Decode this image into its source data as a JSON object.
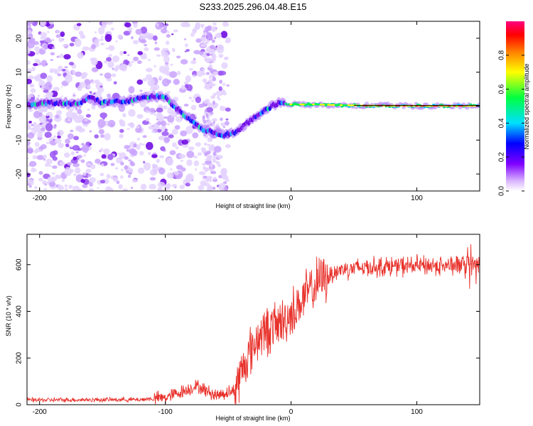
{
  "title": "S233.2025.296.04.48.E15",
  "chart_data": [
    {
      "type": "heatmap",
      "name": "spectrogram",
      "xlabel": "Height of straight line (km)",
      "ylabel": "Frequency (Hz)",
      "xlim": [
        -210,
        150
      ],
      "ylim": [
        -25,
        25
      ],
      "xticks": [
        -200,
        -100,
        0,
        100
      ],
      "xtick_labels": [
        "-200",
        "-100",
        "0",
        "100"
      ],
      "yticks": [
        -20,
        -10,
        0,
        10,
        20
      ],
      "ytick_labels": [
        "-20",
        "-10",
        "0",
        "10",
        "20"
      ],
      "ridge": [
        {
          "x": -210,
          "y": 0.5
        },
        {
          "x": -190,
          "y": 1.0
        },
        {
          "x": -170,
          "y": 0.8
        },
        {
          "x": -160,
          "y": 2.5
        },
        {
          "x": -150,
          "y": 1.0
        },
        {
          "x": -130,
          "y": 1.5
        },
        {
          "x": -110,
          "y": 3.0
        },
        {
          "x": -100,
          "y": 2.5
        },
        {
          "x": -90,
          "y": -1.0
        },
        {
          "x": -80,
          "y": -4.0
        },
        {
          "x": -70,
          "y": -7.0
        },
        {
          "x": -60,
          "y": -8.0
        },
        {
          "x": -55,
          "y": -8.5
        },
        {
          "x": -45,
          "y": -8.0
        },
        {
          "x": -38,
          "y": -6.0
        },
        {
          "x": -30,
          "y": -3.5
        },
        {
          "x": -20,
          "y": -1.0
        },
        {
          "x": -10,
          "y": 1.0
        },
        {
          "x": 0,
          "y": 0.5
        },
        {
          "x": 20,
          "y": 0.5
        },
        {
          "x": 50,
          "y": 0.2
        },
        {
          "x": 100,
          "y": 0.1
        },
        {
          "x": 150,
          "y": 0.1
        }
      ],
      "colorbar": {
        "label": "Normalized spectral amplitude",
        "range": [
          0,
          1
        ],
        "ticks": [
          0.0,
          0.2,
          0.4,
          0.6,
          0.8
        ],
        "tick_labels": [
          "0.0",
          "0.2",
          "0.4",
          "0.6",
          "0.8"
        ],
        "colormap": "rainbow (white-violet-blue-cyan-green-yellow-orange-red-magenta)"
      }
    },
    {
      "type": "line",
      "name": "snr",
      "xlabel": "Height of straight line (km)",
      "ylabel": "SNR (10 * v/v)",
      "xlim": [
        -210,
        150
      ],
      "ylim": [
        0,
        730
      ],
      "xticks": [
        -200,
        -100,
        0,
        100
      ],
      "xtick_labels": [
        "-200",
        "-100",
        "0",
        "100"
      ],
      "yticks": [
        0,
        200,
        400,
        600
      ],
      "ytick_labels": [
        "0",
        "200",
        "400",
        "600"
      ],
      "color": "#e8302a",
      "trend": [
        {
          "x": -210,
          "y": 20
        },
        {
          "x": -120,
          "y": 22
        },
        {
          "x": -100,
          "y": 30
        },
        {
          "x": -85,
          "y": 60
        },
        {
          "x": -75,
          "y": 80
        },
        {
          "x": -60,
          "y": 40
        },
        {
          "x": -45,
          "y": 60
        },
        {
          "x": -35,
          "y": 200
        },
        {
          "x": -25,
          "y": 300
        },
        {
          "x": -15,
          "y": 330
        },
        {
          "x": -5,
          "y": 360
        },
        {
          "x": 5,
          "y": 420
        },
        {
          "x": 15,
          "y": 490
        },
        {
          "x": 25,
          "y": 540
        },
        {
          "x": 40,
          "y": 580
        },
        {
          "x": 60,
          "y": 590
        },
        {
          "x": 100,
          "y": 595
        },
        {
          "x": 150,
          "y": 600
        }
      ]
    }
  ]
}
